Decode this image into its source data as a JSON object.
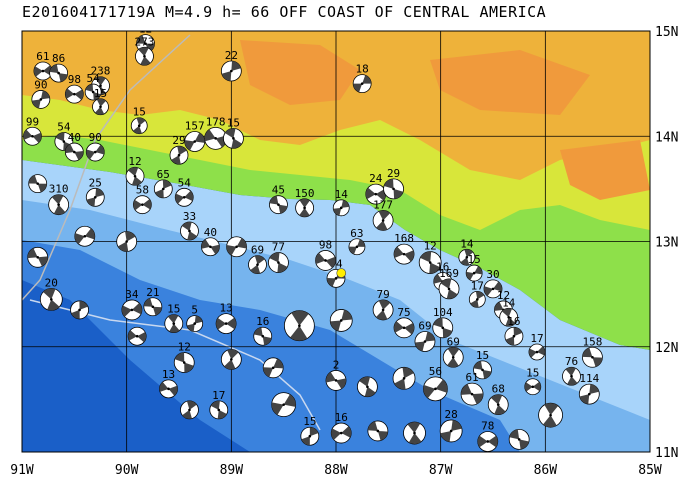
{
  "title": "E201604171719A M=4.9 h= 66 OFF COAST OF CENTRAL AMERICA",
  "map": {
    "lon_min": -91,
    "lon_max": -85,
    "lat_min": 11,
    "lat_max": 15,
    "x_ticks": [
      "91W",
      "90W",
      "89W",
      "88W",
      "87W",
      "86W",
      "85W"
    ],
    "y_ticks": [
      "15N",
      "14N",
      "13N",
      "12N",
      "11N"
    ],
    "colors": {
      "deep_ocean": "#1a5fc8",
      "mid_ocean": "#3a82dd",
      "shallow_ocean": "#76b4ee",
      "shelf": "#a8d4fa",
      "lowland": "#8ee04a",
      "mid_land": "#d8e63a",
      "highland": "#eeb23a",
      "peak": "#f09a3c",
      "event_marker": "#ffee00"
    },
    "event": {
      "lon": -87.95,
      "lat": 12.7
    },
    "mechanisms": [
      {
        "lon": -89.82,
        "lat": 14.88,
        "label": "12",
        "size": 9
      },
      {
        "lon": -89.83,
        "lat": 14.76,
        "label": "273",
        "size": 9
      },
      {
        "lon": -89.0,
        "lat": 14.62,
        "label": "22",
        "size": 10
      },
      {
        "lon": -90.8,
        "lat": 14.62,
        "label": "61",
        "size": 9
      },
      {
        "lon": -90.65,
        "lat": 14.6,
        "label": "86",
        "size": 9
      },
      {
        "lon": -90.25,
        "lat": 14.48,
        "label": "238",
        "size": 9
      },
      {
        "lon": -90.82,
        "lat": 14.35,
        "label": "90",
        "size": 9
      },
      {
        "lon": -90.5,
        "lat": 14.4,
        "label": "98",
        "size": 9
      },
      {
        "lon": -90.32,
        "lat": 14.42,
        "label": "54",
        "size": 8
      },
      {
        "lon": -90.25,
        "lat": 14.28,
        "label": "15",
        "size": 8
      },
      {
        "lon": -87.75,
        "lat": 14.5,
        "label": "18",
        "size": 9
      },
      {
        "lon": -90.9,
        "lat": 14.0,
        "label": "99",
        "size": 9
      },
      {
        "lon": -90.6,
        "lat": 13.95,
        "label": "54",
        "size": 9
      },
      {
        "lon": -89.88,
        "lat": 14.1,
        "label": "15",
        "size": 8
      },
      {
        "lon": -89.35,
        "lat": 13.95,
        "label": "157",
        "size": 10
      },
      {
        "lon": -89.15,
        "lat": 13.98,
        "label": "178",
        "size": 11
      },
      {
        "lon": -88.98,
        "lat": 13.98,
        "label": "15",
        "size": 10
      },
      {
        "lon": -89.5,
        "lat": 13.82,
        "label": "29",
        "size": 9
      },
      {
        "lon": -90.3,
        "lat": 13.85,
        "label": "90",
        "size": 9
      },
      {
        "lon": -90.5,
        "lat": 13.85,
        "label": "40",
        "size": 9
      },
      {
        "lon": -89.92,
        "lat": 13.62,
        "label": "12",
        "size": 9
      },
      {
        "lon": -89.65,
        "lat": 13.5,
        "label": "65",
        "size": 9
      },
      {
        "lon": -89.45,
        "lat": 13.42,
        "label": "54",
        "size": 9
      },
      {
        "lon": -90.85,
        "lat": 13.55,
        "label": "",
        "size": 9
      },
      {
        "lon": -90.65,
        "lat": 13.35,
        "label": "310",
        "size": 10
      },
      {
        "lon": -90.3,
        "lat": 13.42,
        "label": "25",
        "size": 9
      },
      {
        "lon": -89.85,
        "lat": 13.35,
        "label": "58",
        "size": 9
      },
      {
        "lon": -88.55,
        "lat": 13.35,
        "label": "45",
        "size": 9
      },
      {
        "lon": -88.3,
        "lat": 13.32,
        "label": "150",
        "size": 9
      },
      {
        "lon": -87.95,
        "lat": 13.32,
        "label": "14",
        "size": 8
      },
      {
        "lon": -87.62,
        "lat": 13.45,
        "label": "24",
        "size": 10
      },
      {
        "lon": -87.45,
        "lat": 13.5,
        "label": "29",
        "size": 10
      },
      {
        "lon": -87.55,
        "lat": 13.2,
        "label": "177",
        "size": 10
      },
      {
        "lon": -87.8,
        "lat": 12.95,
        "label": "63",
        "size": 8
      },
      {
        "lon": -87.35,
        "lat": 12.88,
        "label": "168",
        "size": 10
      },
      {
        "lon": -87.1,
        "lat": 12.8,
        "label": "12",
        "size": 11
      },
      {
        "lon": -86.75,
        "lat": 12.85,
        "label": "14",
        "size": 8
      },
      {
        "lon": -86.68,
        "lat": 12.7,
        "label": "15",
        "size": 8
      },
      {
        "lon": -86.98,
        "lat": 12.62,
        "label": "16",
        "size": 9
      },
      {
        "lon": -86.92,
        "lat": 12.55,
        "label": "169",
        "size": 10
      },
      {
        "lon": -86.65,
        "lat": 12.45,
        "label": "17",
        "size": 8
      },
      {
        "lon": -86.5,
        "lat": 12.55,
        "label": "30",
        "size": 9
      },
      {
        "lon": -86.4,
        "lat": 12.35,
        "label": "12",
        "size": 9
      },
      {
        "lon": -86.35,
        "lat": 12.28,
        "label": "14",
        "size": 9
      },
      {
        "lon": -86.3,
        "lat": 12.1,
        "label": "16",
        "size": 9
      },
      {
        "lon": -86.08,
        "lat": 11.95,
        "label": "17",
        "size": 8
      },
      {
        "lon": -85.55,
        "lat": 11.9,
        "label": "158",
        "size": 10
      },
      {
        "lon": -85.75,
        "lat": 11.72,
        "label": "76",
        "size": 9
      },
      {
        "lon": -85.58,
        "lat": 11.55,
        "label": "114",
        "size": 10
      },
      {
        "lon": -86.12,
        "lat": 11.62,
        "label": "15",
        "size": 8
      },
      {
        "lon": -86.6,
        "lat": 11.78,
        "label": "15",
        "size": 9
      },
      {
        "lon": -86.88,
        "lat": 11.9,
        "label": "69",
        "size": 10
      },
      {
        "lon": -87.15,
        "lat": 12.05,
        "label": "69",
        "size": 10
      },
      {
        "lon": -87.35,
        "lat": 12.18,
        "label": "75",
        "size": 10
      },
      {
        "lon": -86.98,
        "lat": 12.18,
        "label": "104",
        "size": 10
      },
      {
        "lon": -87.55,
        "lat": 12.35,
        "label": "79",
        "size": 10
      },
      {
        "lon": -88.0,
        "lat": 12.65,
        "label": "74",
        "size": 9
      },
      {
        "lon": -88.1,
        "lat": 12.82,
        "label": "98",
        "size": 10
      },
      {
        "lon": -88.55,
        "lat": 12.8,
        "label": "77",
        "size": 10
      },
      {
        "lon": -88.75,
        "lat": 12.78,
        "label": "69",
        "size": 9
      },
      {
        "lon": -88.95,
        "lat": 12.95,
        "label": "",
        "size": 10
      },
      {
        "lon": -89.2,
        "lat": 12.95,
        "label": "40",
        "size": 9
      },
      {
        "lon": -89.4,
        "lat": 13.1,
        "label": "33",
        "size": 9
      },
      {
        "lon": -90.0,
        "lat": 13.0,
        "label": "",
        "size": 10
      },
      {
        "lon": -90.4,
        "lat": 13.05,
        "label": "",
        "size": 10
      },
      {
        "lon": -90.85,
        "lat": 12.85,
        "label": "",
        "size": 10
      },
      {
        "lon": -90.72,
        "lat": 12.45,
        "label": "20",
        "size": 11
      },
      {
        "lon": -90.45,
        "lat": 12.35,
        "label": "",
        "size": 9
      },
      {
        "lon": -89.95,
        "lat": 12.35,
        "label": "34",
        "size": 10
      },
      {
        "lon": -89.75,
        "lat": 12.38,
        "label": "21",
        "size": 9
      },
      {
        "lon": -89.55,
        "lat": 12.22,
        "label": "15",
        "size": 9
      },
      {
        "lon": -89.35,
        "lat": 12.22,
        "label": "5",
        "size": 8
      },
      {
        "lon": -89.05,
        "lat": 12.22,
        "label": "13",
        "size": 10
      },
      {
        "lon": -88.7,
        "lat": 12.1,
        "label": "16",
        "size": 9
      },
      {
        "lon": -88.35,
        "lat": 12.2,
        "label": "",
        "size": 15
      },
      {
        "lon": -87.95,
        "lat": 12.25,
        "label": "",
        "size": 11
      },
      {
        "lon": -89.9,
        "lat": 12.1,
        "label": "",
        "size": 9
      },
      {
        "lon": -89.45,
        "lat": 11.85,
        "label": "12",
        "size": 10
      },
      {
        "lon": -89.0,
        "lat": 11.88,
        "label": "",
        "size": 10
      },
      {
        "lon": -88.6,
        "lat": 11.8,
        "label": "",
        "size": 10
      },
      {
        "lon": -89.6,
        "lat": 11.6,
        "label": "13",
        "size": 9
      },
      {
        "lon": -89.12,
        "lat": 11.4,
        "label": "17",
        "size": 9
      },
      {
        "lon": -89.4,
        "lat": 11.4,
        "label": "",
        "size": 9
      },
      {
        "lon": -88.5,
        "lat": 11.45,
        "label": "",
        "size": 12
      },
      {
        "lon": -88.0,
        "lat": 11.68,
        "label": "2",
        "size": 10
      },
      {
        "lon": -87.7,
        "lat": 11.62,
        "label": "",
        "size": 10
      },
      {
        "lon": -87.35,
        "lat": 11.7,
        "label": "",
        "size": 11
      },
      {
        "lon": -87.05,
        "lat": 11.6,
        "label": "56",
        "size": 12
      },
      {
        "lon": -86.7,
        "lat": 11.55,
        "label": "61",
        "size": 11
      },
      {
        "lon": -86.45,
        "lat": 11.45,
        "label": "68",
        "size": 10
      },
      {
        "lon": -88.25,
        "lat": 11.15,
        "label": "15",
        "size": 9
      },
      {
        "lon": -87.95,
        "lat": 11.18,
        "label": "16",
        "size": 10
      },
      {
        "lon": -87.6,
        "lat": 11.2,
        "label": "",
        "size": 10
      },
      {
        "lon": -87.25,
        "lat": 11.18,
        "label": "",
        "size": 11
      },
      {
        "lon": -86.9,
        "lat": 11.2,
        "label": "28",
        "size": 11
      },
      {
        "lon": -86.55,
        "lat": 11.1,
        "label": "78",
        "size": 10
      },
      {
        "lon": -86.25,
        "lat": 11.12,
        "label": "",
        "size": 10
      },
      {
        "lon": -85.95,
        "lat": 11.35,
        "label": "",
        "size": 12
      }
    ]
  }
}
